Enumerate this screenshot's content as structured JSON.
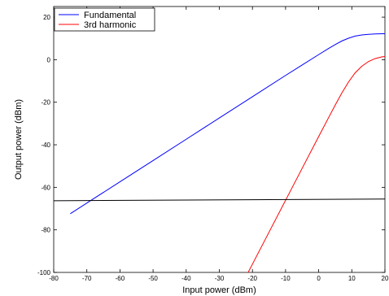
{
  "chart_data": {
    "type": "line",
    "title": "",
    "xlabel": "Input power (dBm)",
    "ylabel": "Output power (dBm)",
    "xlim": [
      -80,
      20
    ],
    "ylim": [
      -100,
      25
    ],
    "xticks": [
      -80,
      -70,
      -60,
      -50,
      -40,
      -30,
      -20,
      -10,
      0,
      10,
      20
    ],
    "yticks": [
      -100,
      -80,
      -60,
      -40,
      -20,
      0,
      20
    ],
    "grid": false,
    "legend_position": "top-left",
    "series": [
      {
        "name": "Fundamental",
        "color": "#0000ff",
        "x": [
          -75,
          -70,
          -60,
          -50,
          -40,
          -30,
          -20,
          -10,
          -5,
          0,
          3,
          5,
          7,
          9,
          11,
          13,
          15,
          17,
          19,
          20
        ],
        "y": [
          -72.4,
          -67.4,
          -57.4,
          -47.4,
          -37.4,
          -27.4,
          -17.4,
          -7.4,
          -2.5,
          2.4,
          5.3,
          7.1,
          8.8,
          10.1,
          11.1,
          11.6,
          11.9,
          12.1,
          12.2,
          12.2
        ]
      },
      {
        "name": "3rd harmonic",
        "color": "#ff0000",
        "x": [
          -21.3,
          -20,
          -15,
          -10,
          -5,
          0,
          3,
          5,
          7,
          9,
          11,
          13,
          15,
          17,
          19,
          20
        ],
        "y": [
          -100,
          -96.1,
          -81.1,
          -66.1,
          -51.1,
          -36.1,
          -27.2,
          -21.3,
          -15.6,
          -10.5,
          -6.2,
          -3.1,
          -0.9,
          0.5,
          1.3,
          1.5
        ]
      },
      {
        "name": "",
        "color": "#000000",
        "x": [
          -80,
          20
        ],
        "y": [
          -66.3,
          -65.5
        ]
      }
    ]
  }
}
